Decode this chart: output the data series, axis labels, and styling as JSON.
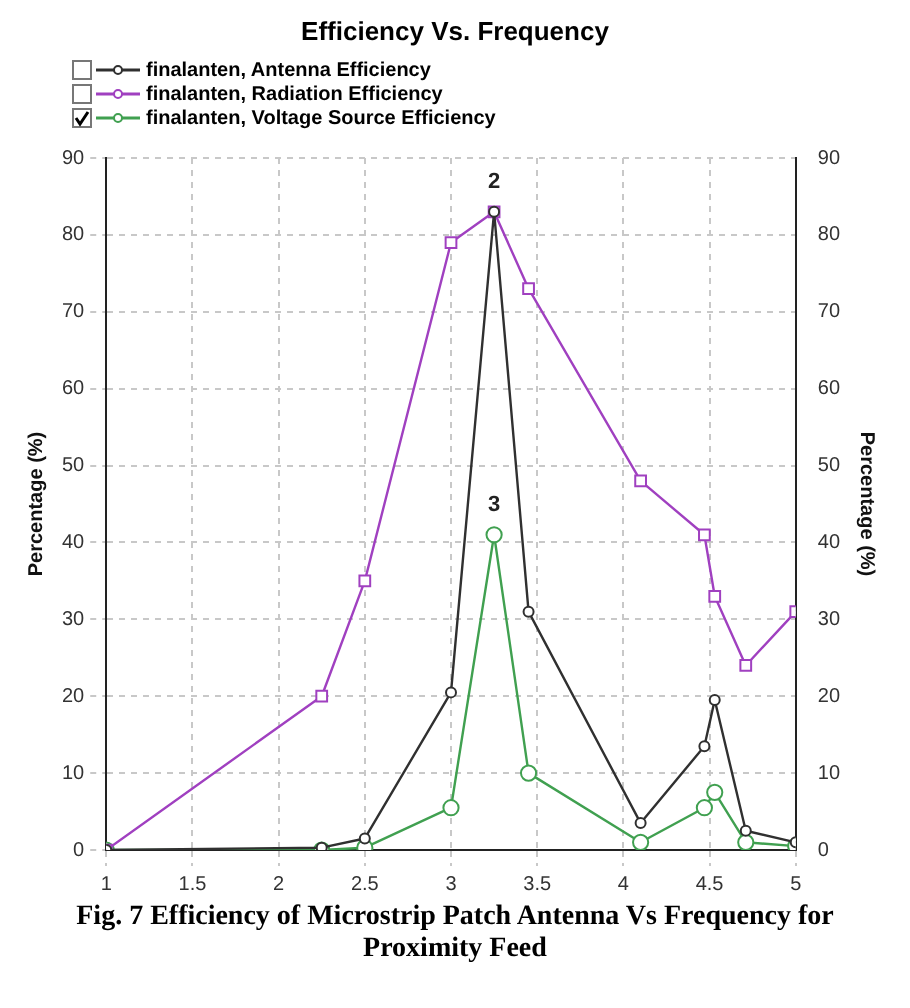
{
  "chart_data": {
    "type": "line",
    "title": "Efficiency Vs. Frequency",
    "ylabel": "Percentage (%)",
    "y2label": "Percentage (%)",
    "xlim": [
      1,
      5
    ],
    "xticks": [
      1,
      1.5,
      2,
      2.5,
      3,
      3.5,
      4,
      4.5,
      5
    ],
    "ylim": [
      0,
      90
    ],
    "yticks": [
      0,
      10,
      20,
      30,
      40,
      50,
      60,
      70,
      80,
      90
    ],
    "y2lim": [
      0,
      90
    ],
    "y2ticks": [
      0,
      10,
      20,
      30,
      40,
      50,
      60,
      70,
      80,
      90
    ],
    "grid": true,
    "legend": "top left",
    "line_style": "solid",
    "series": [
      {
        "name": "finalanten, Antenna Efficiency",
        "color": "#303030",
        "marker": "circle",
        "x": [
          1,
          2.25,
          2.5,
          3,
          3.25,
          3.45,
          4.1,
          4.47,
          4.53,
          4.71,
          5
        ],
        "values": [
          0,
          0.3,
          1.5,
          20.5,
          83,
          31,
          3.5,
          13.5,
          19.5,
          2.5,
          1
        ]
      },
      {
        "name": "finalanten, Radiation Efficiency",
        "color": "#a040c0",
        "marker": "square",
        "x": [
          1,
          2.25,
          2.5,
          3,
          3.25,
          3.45,
          4.1,
          4.47,
          4.53,
          4.71,
          5
        ],
        "values": [
          0,
          20,
          35,
          79,
          83,
          73,
          48,
          41,
          33,
          24,
          31
        ]
      },
      {
        "name": "finalanten, Voltage Source Efficiency",
        "color": "#40a050",
        "marker": "circle",
        "x": [
          1,
          2.25,
          2.5,
          3,
          3.25,
          3.45,
          4.1,
          4.47,
          4.53,
          4.71,
          5
        ],
        "values": [
          0,
          0,
          0.3,
          5.5,
          41,
          10,
          1,
          5.5,
          7.5,
          1,
          0.5
        ]
      }
    ],
    "annotations": [
      {
        "text": "2",
        "x": 3.25,
        "y": 83
      },
      {
        "text": "3",
        "x": 3.25,
        "y": 41
      },
      "Fig. 7 Efficiency of Microstrip Patch Antenna Vs Frequency for Proximity Feed"
    ]
  }
}
